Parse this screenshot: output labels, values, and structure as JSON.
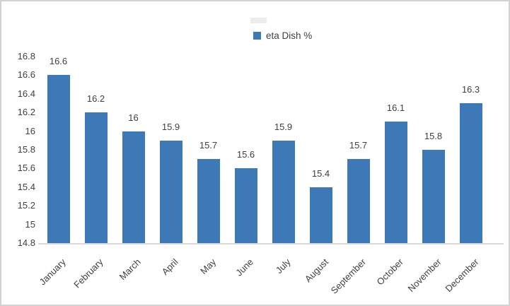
{
  "legend": {
    "label": "eta Dish %",
    "swatch_color": "#3e79b7"
  },
  "chart_data": {
    "type": "bar",
    "title": "",
    "categories": [
      "January",
      "February",
      "March",
      "April",
      "May",
      "June",
      "July",
      "August",
      "September",
      "October",
      "November",
      "December"
    ],
    "series": [
      {
        "name": "eta Dish %",
        "values": [
          16.6,
          16.2,
          16,
          15.9,
          15.7,
          15.6,
          15.9,
          15.4,
          15.7,
          16.1,
          15.8,
          16.3
        ],
        "color": "#3e79b7"
      }
    ],
    "data_labels": [
      "16.6",
      "16.2",
      "16",
      "15.9",
      "15.7",
      "15.6",
      "15.9",
      "15.4",
      "15.7",
      "16.1",
      "15.8",
      "16.3"
    ],
    "xlabel": "",
    "ylabel": "",
    "ylim": [
      14.8,
      16.8
    ],
    "ytick_step": 0.2,
    "ytick_labels": [
      "14.8",
      "15",
      "15.2",
      "15.4",
      "15.6",
      "15.8",
      "16",
      "16.2",
      "16.4",
      "16.6",
      "16.8"
    ],
    "grid": false,
    "legend_position": "top-center",
    "colors": {
      "bar": "#3e79b7",
      "axis_line": "#d9d9d9",
      "text": "#404040"
    }
  }
}
